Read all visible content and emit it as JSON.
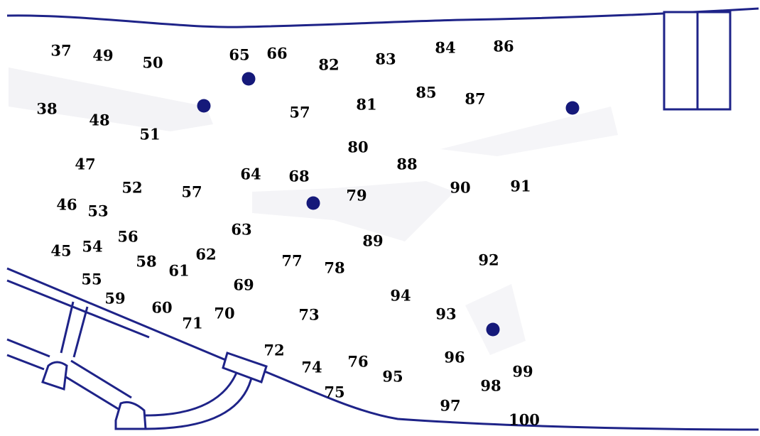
{
  "map": {
    "line_color": "#1e2388",
    "dot_color": "#15197a",
    "markers": [
      "37",
      "49",
      "50",
      "65",
      "66",
      "82",
      "83",
      "84",
      "86",
      "38",
      "48",
      "51",
      "57",
      "81",
      "85",
      "87",
      "47",
      "52",
      "57",
      "64",
      "68",
      "80",
      "88",
      "90",
      "91",
      "46",
      "53",
      "79",
      "45",
      "54",
      "56",
      "63",
      "89",
      "55",
      "58",
      "61",
      "62",
      "77",
      "78",
      "92",
      "59",
      "60",
      "69",
      "71",
      "70",
      "73",
      "94",
      "93",
      "72",
      "74",
      "76",
      "95",
      "96",
      "99",
      "98",
      "75",
      "97",
      "100"
    ]
  }
}
